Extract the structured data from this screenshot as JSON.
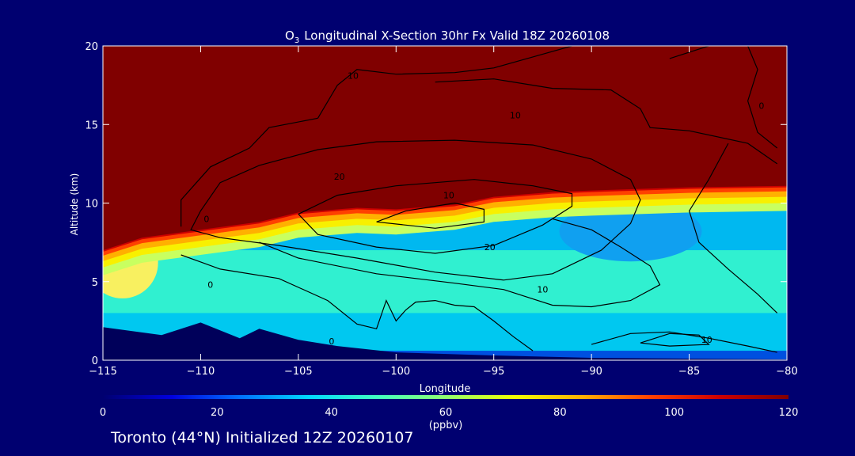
{
  "chart_data": {
    "type": "heatmap",
    "title": "Longitudinal X-Section 30hr  Fx Valid 18Z 20260108",
    "title_species": "O",
    "title_subscript": "3",
    "xlabel": "Longitude",
    "ylabel": "Altitude (km)",
    "xlim": [
      -115,
      -80
    ],
    "ylim": [
      0,
      20
    ],
    "x_ticks": [
      -115,
      -110,
      -105,
      -100,
      -95,
      -90,
      -85,
      -80
    ],
    "x_tick_labels": [
      "−115",
      "−110",
      "−105",
      "−100",
      "−95",
      "−90",
      "−85",
      "−80"
    ],
    "y_ticks": [
      0,
      5,
      10,
      15,
      20
    ],
    "y_tick_labels": [
      "0",
      "5",
      "10",
      "15",
      "20"
    ],
    "colorbar": {
      "min": 0,
      "max": 120,
      "unit": "(ppbv)",
      "ticks": [
        0,
        20,
        40,
        60,
        80,
        100,
        120
      ],
      "tick_labels": [
        "0",
        "20",
        "40",
        "60",
        "80",
        "100",
        "120"
      ],
      "colors": [
        "#000070",
        "#0000dd",
        "#0070ff",
        "#00d8ff",
        "#40ffc0",
        "#90ff70",
        "#f0ff00",
        "#ffb000",
        "#ff4000",
        "#cc0000",
        "#800000"
      ]
    },
    "ozone_field": {
      "tropopause_height_km": [
        {
          "lon": -115,
          "alt": 7.0
        },
        {
          "lon": -113,
          "alt": 7.8
        },
        {
          "lon": -110,
          "alt": 8.3
        },
        {
          "lon": -107,
          "alt": 8.8
        },
        {
          "lon": -105,
          "alt": 9.4
        },
        {
          "lon": -102,
          "alt": 9.7
        },
        {
          "lon": -100,
          "alt": 9.6
        },
        {
          "lon": -97,
          "alt": 9.9
        },
        {
          "lon": -95,
          "alt": 10.4
        },
        {
          "lon": -92,
          "alt": 10.7
        },
        {
          "lon": -90,
          "alt": 10.8
        },
        {
          "lon": -85,
          "alt": 11.0
        },
        {
          "lon": -80,
          "alt": 11.1
        }
      ],
      "stratosphere_ppbv": 120,
      "troposphere_ppbv_range": [
        30,
        55
      ],
      "terrain_km": [
        {
          "lon": -115,
          "alt": 2.1
        },
        {
          "lon": -112,
          "alt": 1.6
        },
        {
          "lon": -110,
          "alt": 2.4
        },
        {
          "lon": -108,
          "alt": 1.4
        },
        {
          "lon": -107,
          "alt": 2.0
        },
        {
          "lon": -105,
          "alt": 1.3
        },
        {
          "lon": -103,
          "alt": 0.9
        },
        {
          "lon": -100,
          "alt": 0.5
        },
        {
          "lon": -95,
          "alt": 0.3
        },
        {
          "lon": -90,
          "alt": 0.15
        },
        {
          "lon": -85,
          "alt": 0.1
        },
        {
          "lon": -80,
          "alt": 0.05
        }
      ]
    },
    "contours": [
      {
        "level": "10",
        "points": [
          [
            -104,
            15.4
          ],
          [
            -103,
            17.5
          ],
          [
            -102,
            18.5
          ],
          [
            -100,
            18.2
          ],
          [
            -97,
            18.3
          ],
          [
            -95,
            18.6
          ],
          [
            -93,
            19.3
          ],
          [
            -91,
            20
          ]
        ]
      },
      {
        "level": "10",
        "points": [
          [
            -98,
            17.7
          ],
          [
            -95,
            17.9
          ],
          [
            -92,
            17.3
          ],
          [
            -89,
            17.2
          ],
          [
            -87.5,
            16.0
          ],
          [
            -87,
            14.8
          ],
          [
            -85,
            14.6
          ],
          [
            -82,
            13.8
          ],
          [
            -80.5,
            12.5
          ]
        ]
      },
      {
        "level": "20",
        "points": [
          [
            -110,
            9.5
          ],
          [
            -109,
            11.3
          ],
          [
            -107,
            12.4
          ],
          [
            -104,
            13.4
          ],
          [
            -101,
            13.9
          ],
          [
            -97,
            14.0
          ],
          [
            -93,
            13.7
          ],
          [
            -90,
            12.8
          ],
          [
            -88,
            11.5
          ],
          [
            -87.5,
            10.2
          ],
          [
            -88,
            8.7
          ],
          [
            -89.5,
            7.0
          ],
          [
            -92,
            5.5
          ],
          [
            -94.5,
            5.1
          ],
          [
            -98,
            5.6
          ],
          [
            -102,
            6.5
          ],
          [
            -106,
            7.3
          ],
          [
            -109,
            7.8
          ],
          [
            -110.5,
            8.3
          ],
          [
            -110,
            9.5
          ]
        ]
      },
      {
        "level": "20",
        "points": [
          [
            -105,
            9.3
          ],
          [
            -103,
            10.5
          ],
          [
            -100,
            11.1
          ],
          [
            -96,
            11.5
          ],
          [
            -93,
            11.1
          ],
          [
            -91,
            10.6
          ],
          [
            -91,
            9.8
          ],
          [
            -92.5,
            8.6
          ],
          [
            -95,
            7.3
          ],
          [
            -98,
            6.8
          ],
          [
            -101,
            7.2
          ],
          [
            -104,
            8.0
          ],
          [
            -105,
            9.3
          ]
        ]
      },
      {
        "level": "20",
        "points": [
          [
            -101,
            8.8
          ],
          [
            -99.5,
            9.5
          ],
          [
            -97,
            10.0
          ],
          [
            -95.5,
            9.6
          ],
          [
            -95.5,
            8.8
          ],
          [
            -98,
            8.4
          ],
          [
            -101,
            8.8
          ]
        ]
      },
      {
        "level": "10",
        "points": [
          [
            -111,
            8.5
          ],
          [
            -111,
            10.2
          ],
          [
            -109.5,
            12.3
          ],
          [
            -107.5,
            13.5
          ],
          [
            -106.5,
            14.8
          ],
          [
            -104,
            15.4
          ]
        ]
      },
      {
        "level": "10",
        "points": [
          [
            -107,
            7.5
          ],
          [
            -105,
            6.5
          ],
          [
            -101,
            5.5
          ],
          [
            -97,
            4.9
          ],
          [
            -94.5,
            4.5
          ],
          [
            -92,
            3.5
          ],
          [
            -90,
            3.4
          ],
          [
            -88,
            3.8
          ],
          [
            -86.5,
            4.8
          ],
          [
            -87,
            6.0
          ],
          [
            -88.5,
            7.2
          ],
          [
            -90,
            8.3
          ],
          [
            -92,
            9.0
          ]
        ]
      },
      {
        "level": "0",
        "points": [
          [
            -111,
            6.7
          ],
          [
            -109,
            5.8
          ],
          [
            -106,
            5.2
          ],
          [
            -103.5,
            3.8
          ],
          [
            -102,
            2.3
          ],
          [
            -101,
            2.0
          ],
          [
            -100.5,
            3.8
          ],
          [
            -100,
            2.5
          ],
          [
            -99.5,
            3.2
          ],
          [
            -99,
            3.7
          ],
          [
            -98,
            3.8
          ],
          [
            -97,
            3.5
          ],
          [
            -96,
            3.4
          ],
          [
            -95,
            2.5
          ],
          [
            -94,
            1.5
          ],
          [
            -93,
            0.6
          ]
        ]
      },
      {
        "level": "10",
        "points": [
          [
            -90,
            1.0
          ],
          [
            -88,
            1.7
          ],
          [
            -86,
            1.8
          ],
          [
            -84,
            1.4
          ],
          [
            -82,
            0.9
          ],
          [
            -80.5,
            0.5
          ]
        ]
      },
      {
        "level": "10",
        "points": [
          [
            -87.5,
            1.1
          ],
          [
            -86,
            1.7
          ],
          [
            -84.5,
            1.6
          ],
          [
            -84,
            1.0
          ],
          [
            -86,
            0.9
          ],
          [
            -87.5,
            1.1
          ]
        ]
      },
      {
        "level": "0",
        "points": [
          [
            -86,
            19.2
          ],
          [
            -84,
            20
          ]
        ]
      },
      {
        "level": "0",
        "points": [
          [
            -82,
            20
          ],
          [
            -81.5,
            18.5
          ],
          [
            -82,
            16.5
          ],
          [
            -81.5,
            14.5
          ],
          [
            -80.5,
            13.5
          ]
        ]
      },
      {
        "level": "0",
        "points": [
          [
            -83,
            13.8
          ],
          [
            -84,
            11.5
          ],
          [
            -85,
            9.5
          ],
          [
            -84.5,
            7.5
          ],
          [
            -83,
            5.8
          ],
          [
            -81.5,
            4.2
          ],
          [
            -80.5,
            3.0
          ]
        ]
      }
    ],
    "contour_labels": [
      {
        "text": "10",
        "lon": -102.2,
        "alt": 18.1
      },
      {
        "text": "10",
        "lon": -93.9,
        "alt": 15.6
      },
      {
        "text": "20",
        "lon": -102.9,
        "alt": 11.7
      },
      {
        "text": "10",
        "lon": -97.3,
        "alt": 10.5
      },
      {
        "text": "20",
        "lon": -95.2,
        "alt": 7.2
      },
      {
        "text": "10",
        "lon": -92.5,
        "alt": 4.5
      },
      {
        "text": "0",
        "lon": -109.5,
        "alt": 4.8
      },
      {
        "text": "0",
        "lon": -103.3,
        "alt": 1.2
      },
      {
        "text": "10",
        "lon": -84.1,
        "alt": 1.3
      },
      {
        "text": "0",
        "lon": -81.3,
        "alt": 16.2
      },
      {
        "text": "0",
        "lon": -109.7,
        "alt": 9.0
      }
    ],
    "footer": "Toronto (44°N) Initialized 12Z 20260107"
  }
}
